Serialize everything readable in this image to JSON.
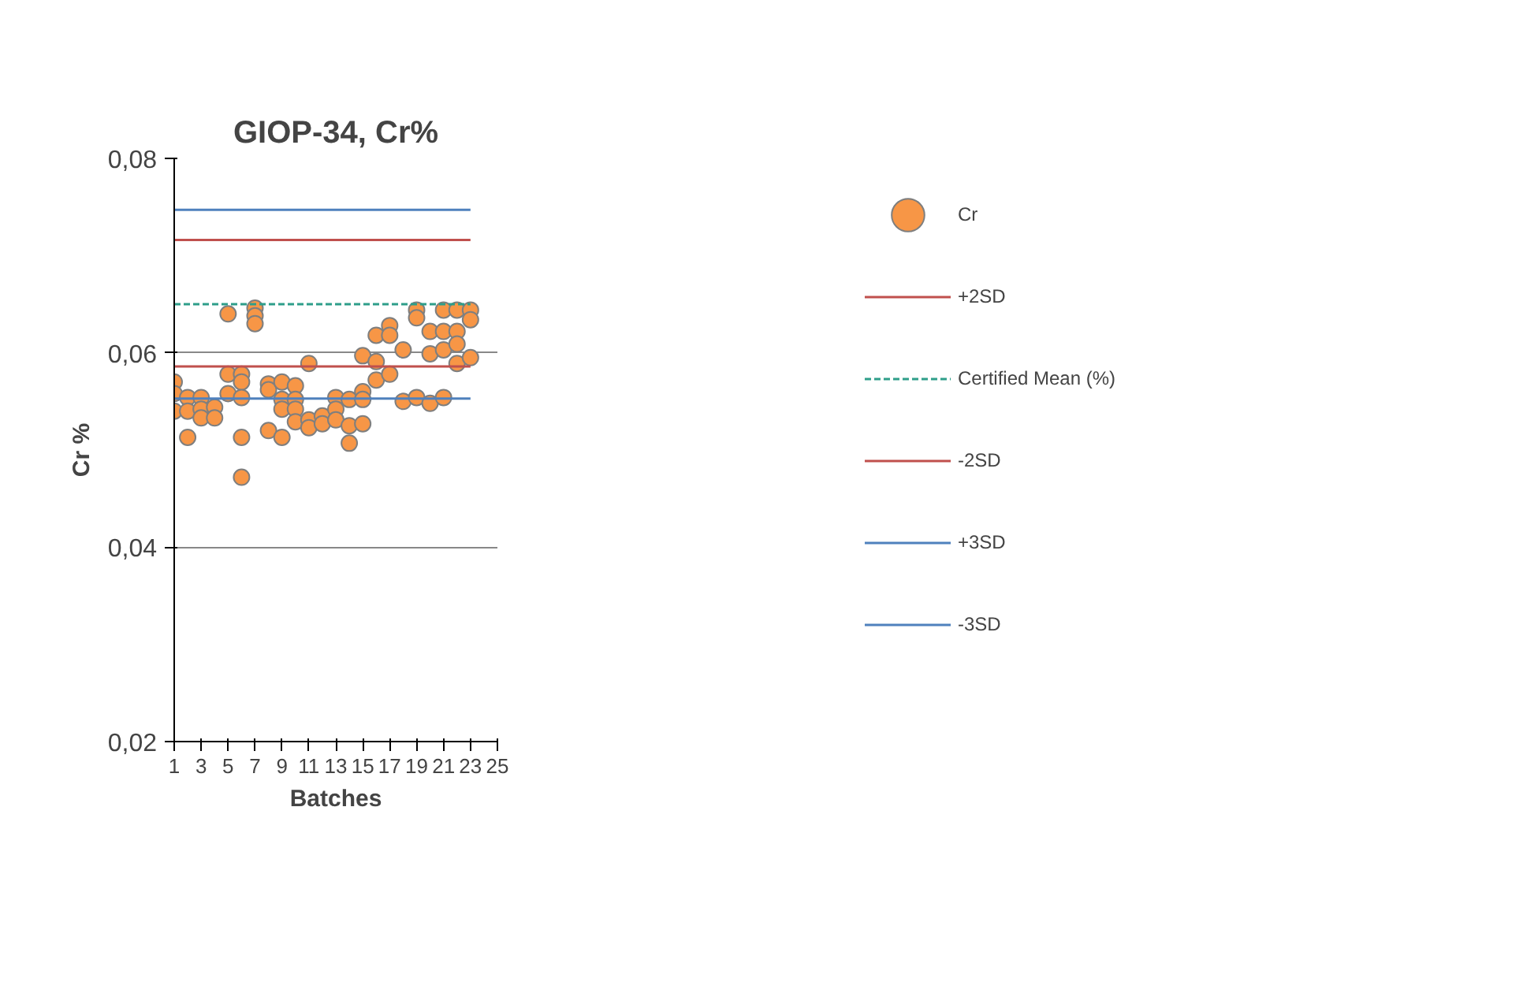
{
  "chart_data": {
    "type": "scatter",
    "title": "GIOP-34, Cr%",
    "xlabel": "Batches",
    "ylabel": "Cr %",
    "xlim": [
      1,
      25
    ],
    "xticks": [
      1,
      3,
      5,
      7,
      9,
      11,
      13,
      15,
      17,
      19,
      21,
      23,
      25
    ],
    "ylim": [
      0.02,
      0.08
    ],
    "yticks": [
      {
        "value": 0.02,
        "label": "0,02"
      },
      {
        "value": 0.04,
        "label": "0,04"
      },
      {
        "value": 0.06,
        "label": "0,06"
      },
      {
        "value": 0.08,
        "label": "0,08"
      }
    ],
    "grid": "y",
    "legend": "right",
    "series": [
      {
        "name": "Cr",
        "marker": "circle",
        "color": "#f79646",
        "x": [
          1,
          1,
          1,
          2,
          2,
          2,
          3,
          3,
          3,
          4,
          4,
          5,
          5,
          5,
          6,
          6,
          6,
          6,
          6,
          7,
          7,
          7,
          8,
          8,
          8,
          9,
          9,
          9,
          9,
          10,
          10,
          10,
          10,
          11,
          11,
          11,
          12,
          12,
          13,
          13,
          13,
          14,
          14,
          14,
          15,
          15,
          15,
          15,
          16,
          16,
          16,
          17,
          17,
          17,
          18,
          18,
          19,
          19,
          19,
          20,
          20,
          20,
          21,
          21,
          21,
          21,
          22,
          22,
          22,
          22,
          23,
          23,
          23
        ],
        "values": [
          0.057,
          0.0558,
          0.054,
          0.0554,
          0.054,
          0.0513,
          0.0554,
          0.0542,
          0.0533,
          0.0544,
          0.0533,
          0.064,
          0.0578,
          0.0558,
          0.0578,
          0.057,
          0.0554,
          0.0513,
          0.0472,
          0.0646,
          0.0638,
          0.063,
          0.0568,
          0.0562,
          0.052,
          0.057,
          0.0552,
          0.0542,
          0.0513,
          0.0566,
          0.0552,
          0.0542,
          0.0529,
          0.0589,
          0.0531,
          0.0523,
          0.0535,
          0.0527,
          0.0554,
          0.0542,
          0.0531,
          0.0552,
          0.0525,
          0.0507,
          0.0597,
          0.056,
          0.0552,
          0.0527,
          0.0618,
          0.0591,
          0.0572,
          0.0628,
          0.0618,
          0.0578,
          0.0603,
          0.055,
          0.0644,
          0.0636,
          0.0554,
          0.0622,
          0.0599,
          0.0548,
          0.0644,
          0.0622,
          0.0603,
          0.0554,
          0.0644,
          0.0622,
          0.0609,
          0.0589,
          0.0644,
          0.0634,
          0.0595
        ]
      },
      {
        "name": "+2SD",
        "type": "line",
        "color": "#c0504d",
        "line_style": "solid",
        "x": [
          1,
          23
        ],
        "values": [
          0.0716,
          0.0716
        ]
      },
      {
        "name": "Certified Mean (%)",
        "type": "line",
        "color": "#2e9e8a",
        "line_style": "dashed",
        "x": [
          1,
          23
        ],
        "values": [
          0.065,
          0.065
        ]
      },
      {
        "name": "-2SD",
        "type": "line",
        "color": "#c0504d",
        "line_style": "solid",
        "x": [
          1,
          23
        ],
        "values": [
          0.0586,
          0.0586
        ]
      },
      {
        "name": "+3SD",
        "type": "line",
        "color": "#4f81bd",
        "line_style": "solid",
        "x": [
          1,
          23
        ],
        "values": [
          0.0747,
          0.0747
        ]
      },
      {
        "name": "-3SD",
        "type": "line",
        "color": "#4f81bd",
        "line_style": "solid",
        "x": [
          1,
          23
        ],
        "values": [
          0.0553,
          0.0553
        ]
      }
    ]
  }
}
